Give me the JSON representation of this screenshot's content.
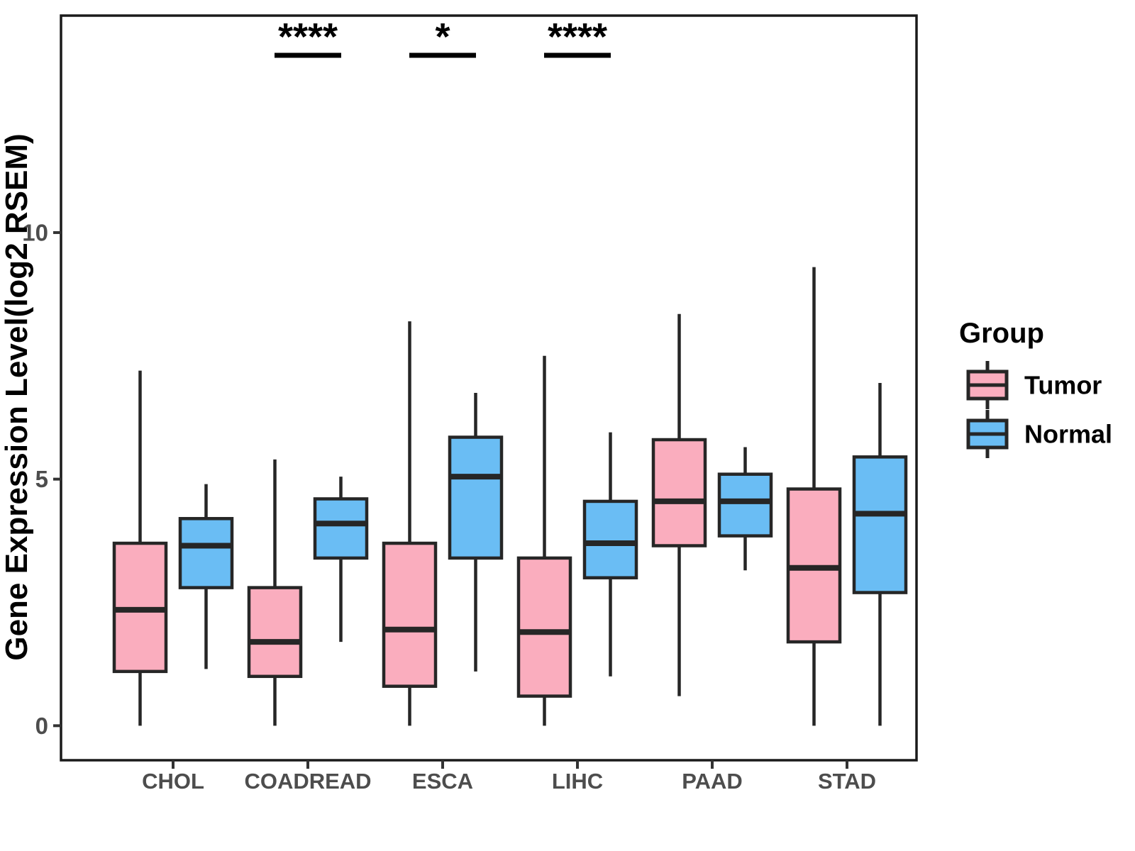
{
  "chart_data": {
    "type": "boxplot",
    "title": "",
    "xlabel": "",
    "ylabel": "Gene Expression Level(log2 RSEM)",
    "ylim": [
      -0.7,
      14.4
    ],
    "yticks": [
      0,
      5,
      10
    ],
    "grid": "off",
    "panel_border": "on",
    "categories": [
      "CHOL",
      "COADREAD",
      "ESCA",
      "LIHC",
      "PAAD",
      "STAD"
    ],
    "legend": {
      "title": "Group",
      "position": "right",
      "items": [
        {
          "label": "Tumor",
          "color": "#FAADBE"
        },
        {
          "label": "Normal",
          "color": "#6ABDF4"
        }
      ]
    },
    "series": [
      {
        "name": "Tumor",
        "color": "#FAADBE",
        "boxes": [
          {
            "category": "CHOL",
            "min": 0.0,
            "q1": 1.1,
            "median": 2.35,
            "q3": 3.7,
            "max": 7.2
          },
          {
            "category": "COADREAD",
            "min": 0.0,
            "q1": 1.0,
            "median": 1.7,
            "q3": 2.8,
            "max": 5.4
          },
          {
            "category": "ESCA",
            "min": 0.0,
            "q1": 0.8,
            "median": 1.95,
            "q3": 3.7,
            "max": 8.2
          },
          {
            "category": "LIHC",
            "min": 0.0,
            "q1": 0.6,
            "median": 1.9,
            "q3": 3.4,
            "max": 7.5
          },
          {
            "category": "PAAD",
            "min": 0.6,
            "q1": 3.65,
            "median": 4.55,
            "q3": 5.8,
            "max": 8.35
          },
          {
            "category": "STAD",
            "min": 0.0,
            "q1": 1.7,
            "median": 3.2,
            "q3": 4.8,
            "max": 9.3
          }
        ]
      },
      {
        "name": "Normal",
        "color": "#6ABDF4",
        "boxes": [
          {
            "category": "CHOL",
            "min": 1.15,
            "q1": 2.8,
            "median": 3.65,
            "q3": 4.2,
            "max": 4.9
          },
          {
            "category": "COADREAD",
            "min": 1.7,
            "q1": 3.4,
            "median": 4.1,
            "q3": 4.6,
            "max": 5.05
          },
          {
            "category": "ESCA",
            "min": 1.1,
            "q1": 3.4,
            "median": 5.05,
            "q3": 5.85,
            "max": 6.75
          },
          {
            "category": "LIHC",
            "min": 1.0,
            "q1": 3.0,
            "median": 3.7,
            "q3": 4.55,
            "max": 5.95
          },
          {
            "category": "PAAD",
            "min": 3.15,
            "q1": 3.85,
            "median": 4.55,
            "q3": 5.1,
            "max": 5.65
          },
          {
            "category": "STAD",
            "min": 0.0,
            "q1": 2.7,
            "median": 4.3,
            "q3": 5.45,
            "max": 6.95
          }
        ]
      }
    ],
    "significance": [
      {
        "category": "COADREAD",
        "label": "****"
      },
      {
        "category": "ESCA",
        "label": "*"
      },
      {
        "category": "LIHC",
        "label": "****"
      }
    ],
    "colors": {
      "box_stroke": "#262626",
      "axis_text": "#4D4D4D",
      "axis_title": "#000000",
      "panel_border": "#1A1A1A",
      "significance_text": "#000000"
    }
  }
}
